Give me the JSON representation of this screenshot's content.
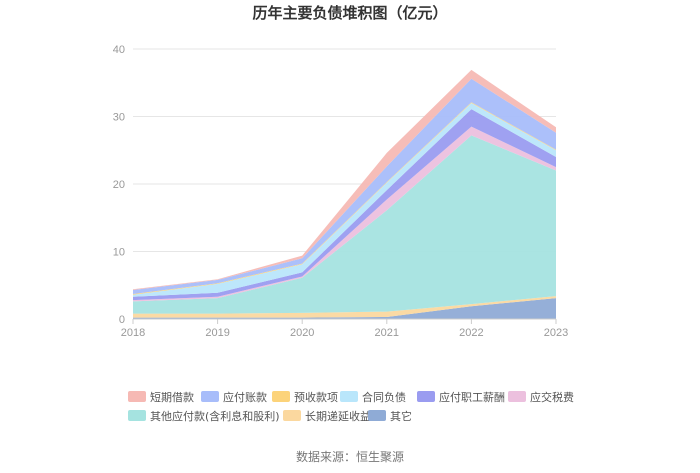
{
  "chart_data": {
    "type": "area",
    "stacked": true,
    "title": "历年主要负债堆积图（亿元）",
    "xlabel": "",
    "ylabel": "",
    "x": [
      "2018",
      "2019",
      "2020",
      "2021",
      "2022",
      "2023"
    ],
    "ylim": [
      0,
      40
    ],
    "yticks": [
      0,
      10,
      20,
      30,
      40
    ],
    "grid": true,
    "legend_position": "bottom",
    "series": [
      {
        "name": "其它",
        "color": "#8fabd6",
        "values": [
          0.2,
          0.2,
          0.2,
          0.3,
          1.9,
          3.1
        ]
      },
      {
        "name": "长期递延收益",
        "color": "#fbd89f",
        "values": [
          0.6,
          0.6,
          0.7,
          0.8,
          0.3,
          0.3
        ]
      },
      {
        "name": "其他应付款(含利息和股利)",
        "color": "#a5e3e0",
        "values": [
          1.8,
          2.3,
          5.2,
          15.0,
          25.0,
          18.6
        ]
      },
      {
        "name": "应交税费",
        "color": "#ecc0de",
        "values": [
          0.2,
          0.2,
          0.2,
          1.6,
          1.3,
          0.5
        ]
      },
      {
        "name": "应付职工薪酬",
        "color": "#9a9cf0",
        "values": [
          0.5,
          0.6,
          0.6,
          1.4,
          2.6,
          1.5
        ]
      },
      {
        "name": "合同负债",
        "color": "#b9e6fb",
        "values": [
          0.3,
          1.3,
          1.2,
          1.1,
          0.9,
          1.0
        ]
      },
      {
        "name": "预收款项",
        "color": "#fcd37a",
        "values": [
          0.1,
          0.1,
          0.1,
          0.1,
          0.1,
          0.1
        ]
      },
      {
        "name": "应付账款",
        "color": "#a8bdfa",
        "values": [
          0.6,
          0.5,
          0.8,
          2.3,
          3.5,
          2.5
        ]
      },
      {
        "name": "短期借款",
        "color": "#f6b9b4",
        "values": [
          0.1,
          0.1,
          0.4,
          2.0,
          1.3,
          0.8
        ]
      }
    ],
    "legend_order": [
      "短期借款",
      "应付账款",
      "预收款项",
      "合同负债",
      "应付职工薪酬",
      "应交税费",
      "其他应付款(含利息和股利)",
      "长期递延收益",
      "其它"
    ]
  },
  "source_text": "数据来源：恒生聚源"
}
